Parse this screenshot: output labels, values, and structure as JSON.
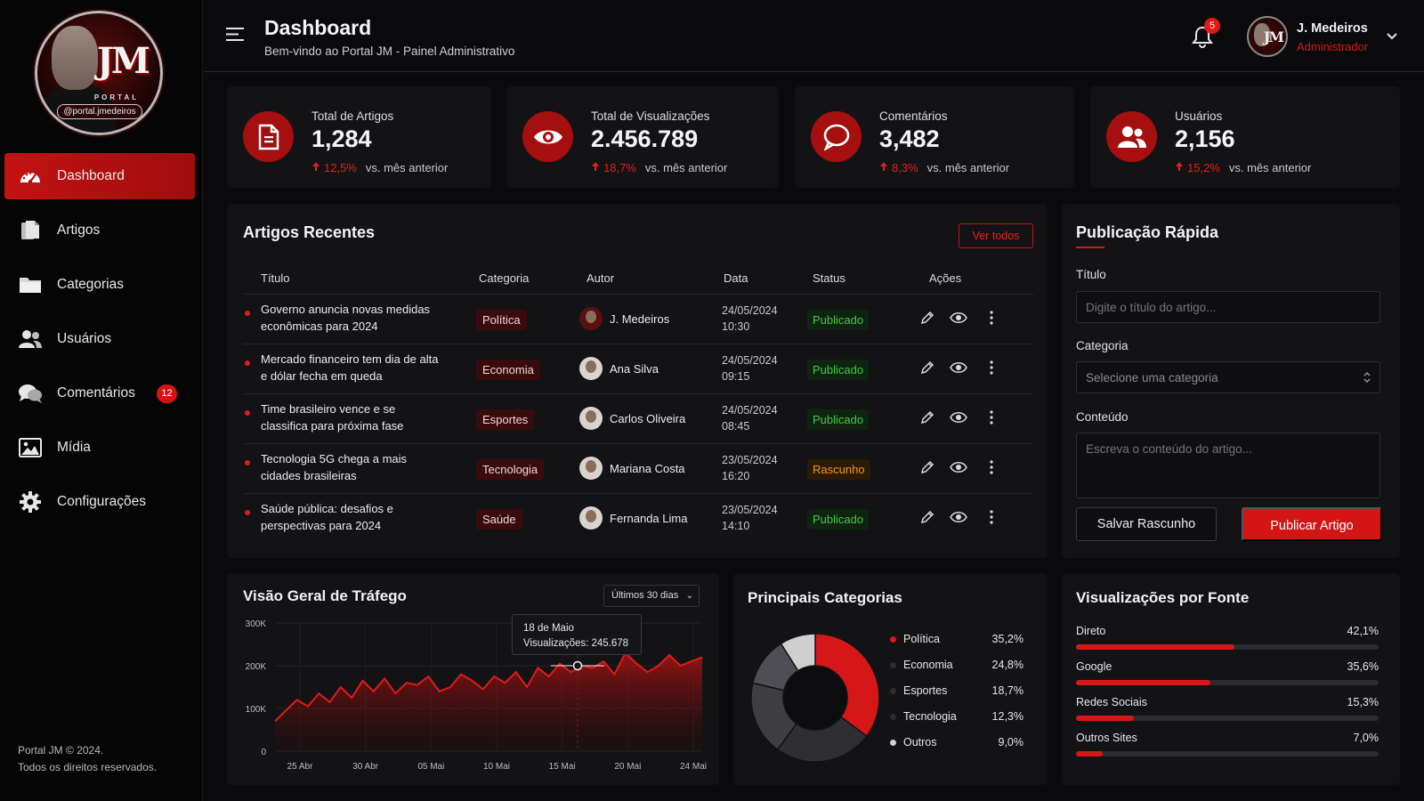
{
  "sidebar": {
    "logo": {
      "mark": "JM",
      "portal": "PORTAL",
      "handle": "@portal.jmedeiros"
    },
    "items": [
      {
        "label": "Dashboard",
        "icon": "dashboard-gauge-icon",
        "active": true
      },
      {
        "label": "Artigos",
        "icon": "documents-icon"
      },
      {
        "label": "Categorias",
        "icon": "folder-icon"
      },
      {
        "label": "Usuários",
        "icon": "users-icon"
      },
      {
        "label": "Comentários",
        "icon": "comments-icon",
        "badge": "12"
      },
      {
        "label": "Mídia",
        "icon": "image-icon"
      },
      {
        "label": "Configurações",
        "icon": "gear-icon"
      }
    ],
    "footer_line1": "Portal JM © 2024.",
    "footer_line2": "Todos os direitos reservados."
  },
  "header": {
    "title": "Dashboard",
    "subtitle": "Bem-vindo ao Portal JM - Painel Administrativo",
    "notifications": "5",
    "user_mark": "JM",
    "user_name": "J. Medeiros",
    "user_role": "Administrador"
  },
  "stats": [
    {
      "label": "Total de Artigos",
      "value": "1,284",
      "pct": "12,5%",
      "compare": "vs. mês anterior",
      "icon": "document-icon"
    },
    {
      "label": "Total de Visualizações",
      "value": "2.456.789",
      "pct": "18,7%",
      "compare": "vs. mês anterior",
      "icon": "eye-icon"
    },
    {
      "label": "Comentários",
      "value": "3,482",
      "pct": "8,3%",
      "compare": "vs. mês anterior",
      "icon": "chat-bubble-icon"
    },
    {
      "label": "Usuários",
      "value": "2,156",
      "pct": "15,2%",
      "compare": "vs. mês anterior",
      "icon": "users-icon"
    }
  ],
  "articles": {
    "title": "Artigos Recentes",
    "view_all": "Ver todos",
    "columns": [
      "Título",
      "Categoria",
      "Autor",
      "Data",
      "Status",
      "Ações"
    ],
    "rows": [
      {
        "title": "Governo anuncia novas medidas econômicas para 2024",
        "category": "Política",
        "author": "J. Medeiros",
        "date": "24/05/2024",
        "time": "10:30",
        "status": "Publicado"
      },
      {
        "title": "Mercado financeiro tem dia de alta e dólar fecha em queda",
        "category": "Economia",
        "author": "Ana Silva",
        "date": "24/05/2024",
        "time": "09:15",
        "status": "Publicado"
      },
      {
        "title": "Time brasileiro vence e se classifica para próxima fase",
        "category": "Esportes",
        "author": "Carlos Oliveira",
        "date": "24/05/2024",
        "time": "08:45",
        "status": "Publicado"
      },
      {
        "title": "Tecnologia 5G chega a mais cidades brasileiras",
        "category": "Tecnologia",
        "author": "Mariana Costa",
        "date": "23/05/2024",
        "time": "16:20",
        "status": "Rascunho"
      },
      {
        "title": "Saúde pública: desafios e perspectivas para 2024",
        "category": "Saúde",
        "author": "Fernanda Lima",
        "date": "23/05/2024",
        "time": "14:10",
        "status": "Publicado"
      }
    ]
  },
  "quick_publish": {
    "title": "Publicação Rápida",
    "title_label": "Título",
    "title_placeholder": "Digite o título do artigo...",
    "category_label": "Categoria",
    "category_placeholder": "Selecione uma categoria",
    "content_label": "Conteúdo",
    "content_placeholder": "Escreva o conteúdo do artigo...",
    "save_label": "Salvar Rascunho",
    "publish_label": "Publicar Artigo"
  },
  "traffic": {
    "title": "Visão Geral de Tráfego",
    "range": "Últimos 30 dias",
    "tooltip_date": "18 de Maio",
    "tooltip_value": "Visualizações: 245.678"
  },
  "categories_panel": {
    "title": "Principais Categorias"
  },
  "sources": {
    "title": "Visualizações por Fonte",
    "items": [
      {
        "name": "Direto",
        "label": "42,1%",
        "value": 42.1
      },
      {
        "name": "Google",
        "label": "35,6%",
        "value": 35.6
      },
      {
        "name": "Redes Sociais",
        "label": "15,3%",
        "value": 15.3
      },
      {
        "name": "Outros Sites",
        "label": "7,0%",
        "value": 7.0
      }
    ]
  },
  "colors": {
    "accent": "#d31515",
    "success": "#46c84a",
    "warning": "#f19a1c"
  },
  "chart_data": [
    {
      "type": "area",
      "title": "Visão Geral de Tráfego",
      "ylim": [
        0,
        300000
      ],
      "y_ticks": [
        "0",
        "100K",
        "200K",
        "300K"
      ],
      "x_ticks": [
        "25 Abr",
        "30 Abr",
        "05 Mai",
        "10 Mai",
        "15 Mai",
        "20 Mai",
        "24 Mai"
      ],
      "grid": true,
      "series": [
        {
          "values": [
            70000,
            95000,
            120000,
            105000,
            135000,
            115000,
            150000,
            125000,
            165000,
            140000,
            170000,
            135000,
            160000,
            155000,
            175000,
            140000,
            150000,
            180000,
            165000,
            145000,
            175000,
            160000,
            185000,
            150000,
            195000,
            175000,
            205000,
            185000,
            200000,
            195000,
            210000,
            180000,
            230000,
            205000,
            185000,
            200000,
            225000,
            200000,
            210000,
            220000
          ]
        }
      ],
      "highlight": {
        "label": "18 de Maio",
        "value": 245678
      }
    },
    {
      "type": "pie",
      "title": "Principais Categorias",
      "legend": "right",
      "categories": [
        "Política",
        "Economia",
        "Esportes",
        "Tecnologia",
        "Outros"
      ],
      "values": [
        35.2,
        24.8,
        18.7,
        12.3,
        9.0
      ],
      "labels": [
        "35,2%",
        "24,8%",
        "18,7%",
        "12,3%",
        "9,0%"
      ],
      "colors": [
        "#d61717",
        "#2e2e33",
        "#3d3d42",
        "#4e4e54",
        "#cfcfcf"
      ]
    }
  ]
}
